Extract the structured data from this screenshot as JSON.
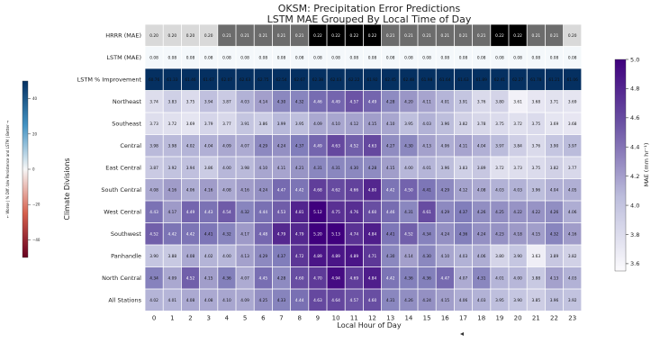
{
  "chart_data": {
    "type": "heatmap",
    "title": "OKSM: Precipitation Error Predictions",
    "subtitle": "LSTM MAE Grouped By Local Time of Day",
    "xlabel": "Local Hour of Day",
    "ylabel": "Climate Divisions",
    "x": [
      0,
      1,
      2,
      3,
      4,
      5,
      6,
      7,
      8,
      9,
      10,
      11,
      12,
      13,
      14,
      15,
      16,
      17,
      18,
      19,
      20,
      21,
      22,
      23
    ],
    "top_rows": [
      {
        "name": "HRRR (MAE)",
        "values": [
          0.2,
          0.2,
          0.2,
          0.2,
          0.21,
          0.21,
          0.21,
          0.21,
          0.21,
          0.22,
          0.22,
          0.22,
          0.22,
          0.21,
          0.21,
          0.21,
          0.21,
          0.21,
          0.21,
          0.22,
          0.22,
          0.21,
          0.21,
          0.2
        ]
      },
      {
        "name": "LSTM (MAE)",
        "values": [
          0.08,
          0.08,
          0.08,
          0.08,
          0.08,
          0.08,
          0.08,
          0.08,
          0.08,
          0.08,
          0.08,
          0.08,
          0.08,
          0.08,
          0.08,
          0.08,
          0.08,
          0.08,
          0.08,
          0.08,
          0.08,
          0.08,
          0.08,
          0.08
        ]
      },
      {
        "name": "LSTM % Improvement",
        "values": [
          60.76,
          61.33,
          61.46,
          61.67,
          62.07,
          62.63,
          62.75,
          62.54,
          62.67,
          62.38,
          62.03,
          62.22,
          61.92,
          62.45,
          62.48,
          61.98,
          61.64,
          61.63,
          61.89,
          62.41,
          62.27,
          61.78,
          61.21,
          61.06
        ]
      }
    ],
    "rows": [
      {
        "name": "Northeast",
        "values": [
          3.74,
          3.83,
          3.75,
          3.94,
          3.87,
          4.03,
          4.14,
          4.3,
          4.32,
          4.46,
          4.49,
          4.57,
          4.49,
          4.28,
          4.2,
          4.11,
          4.01,
          3.91,
          3.76,
          3.8,
          3.61,
          3.68,
          3.71,
          3.69
        ]
      },
      {
        "name": "Southeast",
        "values": [
          3.73,
          3.72,
          3.69,
          3.79,
          3.77,
          3.91,
          3.86,
          3.99,
          3.95,
          4.09,
          4.1,
          4.12,
          4.15,
          4.1,
          3.95,
          4.03,
          3.96,
          3.82,
          3.78,
          3.75,
          3.72,
          3.75,
          3.69,
          3.68
        ]
      },
      {
        "name": "Central",
        "values": [
          3.98,
          3.98,
          4.02,
          4.04,
          4.09,
          4.07,
          4.29,
          4.24,
          4.37,
          4.49,
          4.63,
          4.52,
          4.63,
          4.27,
          4.3,
          4.13,
          4.06,
          4.11,
          4.04,
          3.97,
          3.84,
          3.76,
          3.9,
          3.97
        ]
      },
      {
        "name": "East Central",
        "values": [
          3.87,
          3.92,
          3.94,
          3.86,
          4.0,
          3.98,
          4.1,
          4.11,
          4.21,
          4.31,
          4.31,
          4.3,
          4.28,
          4.15,
          4.0,
          4.01,
          3.96,
          3.83,
          3.89,
          3.72,
          3.73,
          3.75,
          3.82,
          3.77
        ]
      },
      {
        "name": "South Central",
        "values": [
          4.08,
          4.16,
          4.06,
          4.16,
          4.08,
          4.16,
          4.24,
          4.47,
          4.42,
          4.68,
          4.62,
          4.66,
          4.8,
          4.42,
          4.5,
          4.41,
          4.29,
          4.12,
          4.08,
          4.03,
          4.03,
          3.96,
          4.04,
          4.05
        ]
      },
      {
        "name": "West Central",
        "values": [
          4.43,
          4.17,
          4.49,
          4.43,
          4.54,
          4.32,
          4.44,
          4.53,
          4.81,
          5.12,
          4.75,
          4.76,
          4.6,
          4.46,
          4.31,
          4.61,
          4.29,
          4.37,
          4.26,
          4.25,
          4.22,
          4.22,
          4.26,
          4.06
        ]
      },
      {
        "name": "Southwest",
        "values": [
          4.52,
          4.42,
          4.42,
          4.41,
          4.32,
          4.17,
          4.48,
          4.79,
          4.79,
          5.2,
          5.13,
          4.74,
          4.84,
          4.41,
          4.52,
          4.34,
          4.24,
          4.36,
          4.24,
          4.23,
          4.18,
          4.15,
          4.32,
          4.16
        ]
      },
      {
        "name": "Panhandle",
        "values": [
          3.9,
          3.88,
          4.08,
          4.02,
          4.0,
          4.13,
          4.29,
          4.37,
          4.72,
          4.89,
          4.89,
          4.89,
          4.71,
          4.3,
          4.14,
          4.3,
          4.1,
          4.03,
          4.06,
          3.8,
          3.9,
          3.63,
          3.89,
          3.82
        ]
      },
      {
        "name": "North Central",
        "values": [
          4.34,
          4.09,
          4.52,
          4.15,
          4.36,
          4.07,
          4.45,
          4.28,
          4.6,
          4.7,
          4.94,
          4.69,
          4.84,
          4.42,
          4.36,
          4.36,
          4.47,
          4.07,
          4.31,
          4.01,
          4.0,
          3.88,
          4.13,
          4.03
        ]
      },
      {
        "name": "All Stations",
        "values": [
          4.02,
          4.01,
          4.08,
          4.08,
          4.1,
          4.09,
          4.25,
          4.33,
          4.44,
          4.63,
          4.64,
          4.57,
          4.6,
          4.31,
          4.26,
          4.24,
          4.15,
          4.06,
          4.03,
          3.95,
          3.9,
          3.85,
          3.96,
          3.92
        ]
      }
    ],
    "colorbar_right": {
      "label": "MAE (mm hr⁻¹)",
      "ticks": [
        "3.6",
        "3.8",
        "4.0",
        "4.2",
        "4.4",
        "4.6",
        "4.8",
        "5.0"
      ],
      "range": [
        3.55,
        5.0
      ],
      "colors": [
        "#fcfbfd",
        "#3f007d"
      ]
    },
    "colorbar_left": {
      "label": "← Worse | % Diff. b/w Persistence and LSTM | Better →",
      "ticks": [
        "40",
        "20",
        "0",
        "−20",
        "−40"
      ],
      "colors": [
        "#053061",
        "#f7f7f7",
        "#67001f"
      ]
    },
    "colors": {
      "hrrr_scale": [
        "#e4e4e4",
        "#000000"
      ],
      "lstm_mae": "#f4f8fb",
      "improvement": "#053061"
    }
  }
}
